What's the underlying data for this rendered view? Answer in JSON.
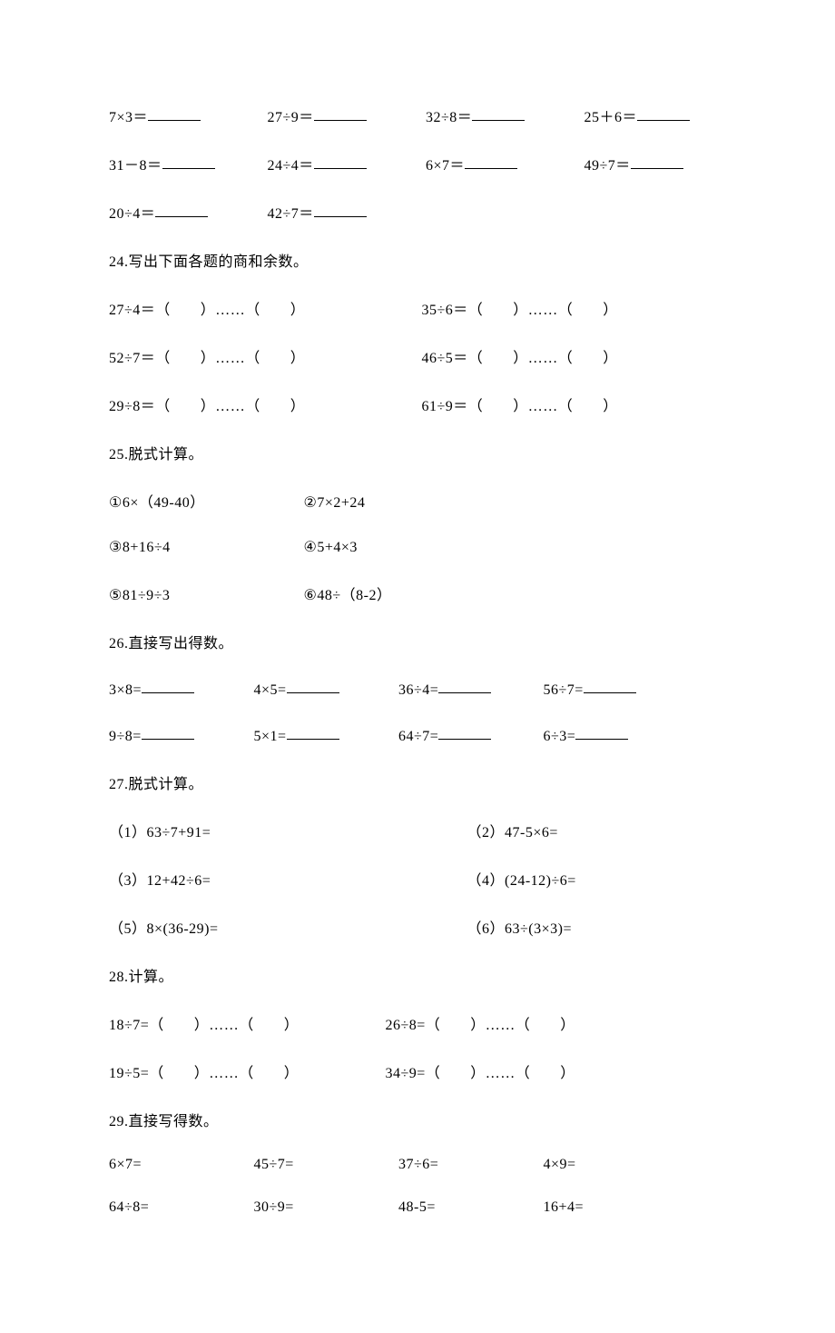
{
  "colors": {
    "text": "#000000",
    "background": "#ffffff",
    "underline": "#000000"
  },
  "fontsize": 16,
  "r1": {
    "a": "7×3＝",
    "b": "27÷9＝",
    "c": "32÷8＝",
    "d": "25＋6＝"
  },
  "r2": {
    "a": "31－8＝",
    "b": "24÷4＝",
    "c": "6×7＝",
    "d": "49÷7＝"
  },
  "r3": {
    "a": "20÷4＝",
    "b": "42÷7＝"
  },
  "q24": {
    "title": "24.写出下面各题的商和余数。",
    "a1": "27÷4＝（　　）……（　　）",
    "b1": "35÷6＝（　　）……（　　）",
    "a2": "52÷7＝（　　）……（　　）",
    "b2": "46÷5＝（　　）……（　　）",
    "a3": "29÷8＝（　　）……（　　）",
    "b3": "61÷9＝（　　）……（　　）"
  },
  "q25": {
    "title": "25.脱式计算。",
    "a1": "①6×（49-40）",
    "b1": "②7×2+24",
    "a2": "③8+16÷4",
    "b2": "④5+4×3",
    "a3": "⑤81÷9÷3",
    "b3": "⑥48÷（8-2）"
  },
  "q26": {
    "title": "26.直接写出得数。",
    "a1": "3×8=",
    "b1": "4×5=",
    "c1": "36÷4=",
    "d1": "56÷7=",
    "a2": "9÷8=",
    "b2": "5×1=",
    "c2": "64÷7=",
    "d2": "6÷3="
  },
  "q27": {
    "title": "27.脱式计算。",
    "a1": "（1）63÷7+91=",
    "b1": "（2）47-5×6=",
    "a2": "（3）12+42÷6=",
    "b2": "（4）(24-12)÷6=",
    "a3": "（5）8×(36-29)=",
    "b3": "（6）63÷(3×3)="
  },
  "q28": {
    "title": "28.计算。",
    "a1": "18÷7=（　　）……（　　）",
    "b1": "26÷8=（　　）……（　　）",
    "a2": "19÷5=（　　）……（　　）",
    "b2": "34÷9=（　　）……（　　）"
  },
  "q29": {
    "title": "29.直接写得数。",
    "a1": "6×7=",
    "b1": "45÷7=",
    "c1": "37÷6=",
    "d1": "4×9=",
    "a2": "64÷8=",
    "b2": "30÷9=",
    "c2": "48-5=",
    "d2": "16+4="
  }
}
